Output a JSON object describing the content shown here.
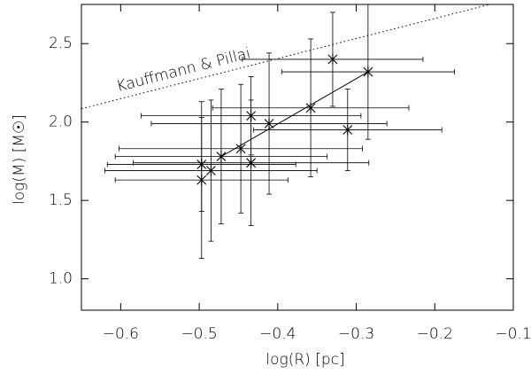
{
  "chart_data": {
    "type": "scatter",
    "x_label": "log(R)  [pc]",
    "y_label": "log(M)  [M☉]",
    "xlim": [
      -0.65,
      -0.1
    ],
    "ylim": [
      0.8,
      2.75
    ],
    "xticks": [
      {
        "value": -0.6,
        "label": "−0.6"
      },
      {
        "value": -0.5,
        "label": "−0.5"
      },
      {
        "value": -0.4,
        "label": "−0.4"
      },
      {
        "value": -0.3,
        "label": "−0.3"
      },
      {
        "value": -0.2,
        "label": "−0.2"
      },
      {
        "value": -0.1,
        "label": "−0.1"
      }
    ],
    "yticks": [
      {
        "value": 1.0,
        "label": "1.0"
      },
      {
        "value": 1.5,
        "label": "1.5"
      },
      {
        "value": 2.0,
        "label": "2.0"
      },
      {
        "value": 2.5,
        "label": "2.5"
      }
    ],
    "series": [
      {
        "type": "errorbar",
        "color": "#000000",
        "x": [
          -0.497,
          -0.497,
          -0.485,
          -0.472,
          -0.447,
          -0.434,
          -0.434,
          -0.411,
          -0.358,
          -0.311,
          -0.33,
          -0.285
        ],
        "values": [
          1.63,
          1.73,
          1.69,
          1.78,
          1.83,
          1.74,
          2.04,
          1.99,
          2.09,
          1.95,
          2.4,
          2.32
        ],
        "xerr": [
          0.11,
          0.12,
          0.135,
          0.135,
          0.155,
          0.15,
          0.14,
          0.15,
          0.125,
          0.12,
          0.115,
          0.11
        ],
        "yerr": [
          0.5,
          0.3,
          0.45,
          0.43,
          0.41,
          0.4,
          0.25,
          0.45,
          0.44,
          0.26,
          0.3,
          0.43
        ]
      },
      {
        "type": "line",
        "color": "#000000",
        "dash": "solid",
        "x": [
          -0.472,
          -0.285
        ],
        "values": [
          1.78,
          2.32
        ]
      },
      {
        "type": "line",
        "name": "Kauffmann & Pillai",
        "color": "#000000",
        "dash": "dotted",
        "x": [
          -0.65,
          -0.13
        ],
        "values": [
          2.085,
          2.75
        ]
      }
    ]
  }
}
